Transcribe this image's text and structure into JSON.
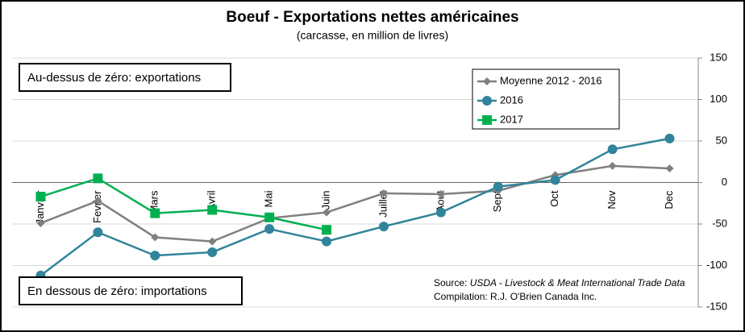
{
  "chart_data": {
    "type": "line",
    "title": "Boeuf  - Exportations nettes américaines",
    "subtitle": "(carcasse, en million de livres)",
    "categories": [
      "Janvier",
      "Fevrier",
      "Mars",
      "Avril",
      "Mai",
      "Juin",
      "Juillet",
      "Aout",
      "Sept",
      "Oct",
      "Nov",
      "Dec"
    ],
    "series": [
      {
        "name": "Moyenne 2012 - 2016",
        "color": "#808080",
        "marker": "diamond",
        "values": [
          -49,
          -22,
          -66,
          -71,
          -43,
          -36,
          -13,
          -14,
          -10,
          9,
          20,
          17
        ]
      },
      {
        "name": "2016",
        "color": "#31849b",
        "marker": "circle",
        "values": [
          -112,
          -60,
          -88,
          -84,
          -56,
          -71,
          -53,
          -36,
          -5,
          3,
          40,
          53
        ]
      },
      {
        "name": "2017",
        "color": "#00b050",
        "marker": "square",
        "values": [
          -17,
          5,
          -37,
          -33,
          -42,
          -57,
          null,
          null,
          null,
          null,
          null,
          null
        ]
      }
    ],
    "ylim": [
      -150,
      150
    ],
    "yticks": [
      -150,
      -100,
      -50,
      0,
      50,
      100,
      150
    ],
    "grid": true,
    "annotations": {
      "above": "Au-dessus de zéro: exportations",
      "below": "En dessous de zéro: importations",
      "source_label": "Source:",
      "source": "USDA - Livestock & Meat International Trade Data",
      "compilation": "Compilation: R.J. O'Brien Canada Inc."
    }
  }
}
